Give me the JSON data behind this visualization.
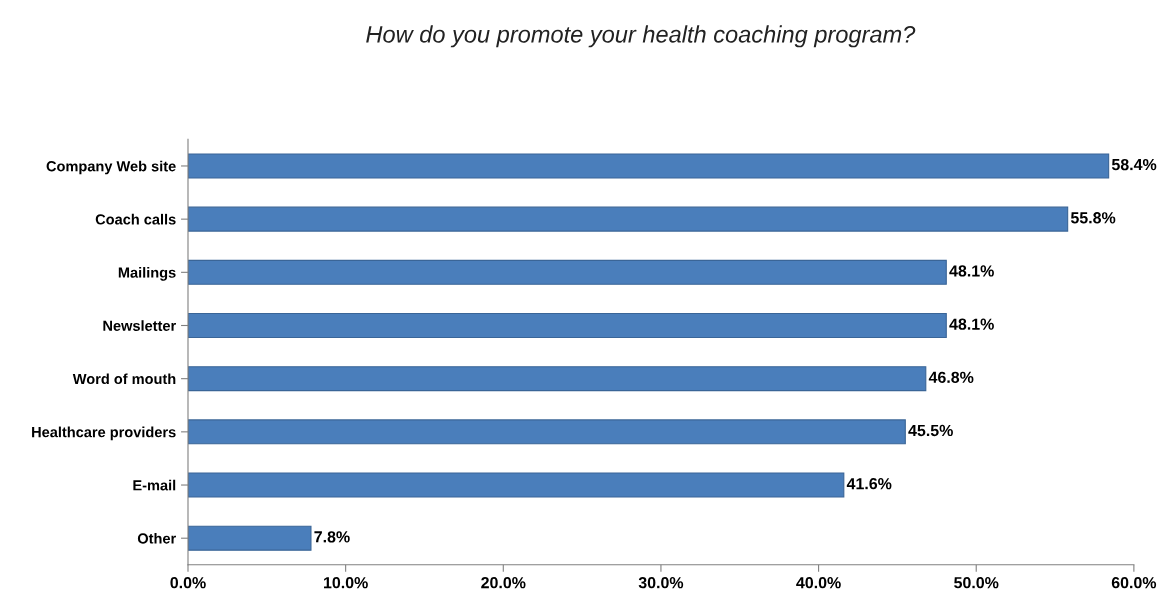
{
  "chart_data": {
    "type": "bar",
    "orientation": "horizontal",
    "title": "How do you promote your health coaching program?",
    "categories": [
      "Company Web site",
      "Coach calls",
      "Mailings",
      "Newsletter",
      "Word of mouth",
      "Healthcare providers",
      "E-mail",
      "Other"
    ],
    "values": [
      58.4,
      55.8,
      48.1,
      48.1,
      46.8,
      45.5,
      41.6,
      7.8
    ],
    "value_labels": [
      "58.4%",
      "55.8%",
      "48.1%",
      "48.1%",
      "46.8%",
      "45.5%",
      "41.6%",
      "7.8%"
    ],
    "color": "#4a7ebb",
    "xlim": [
      0,
      60
    ],
    "xticks": [
      {
        "value": 0,
        "label": "0.0%"
      },
      {
        "value": 10,
        "label": "10.0%"
      },
      {
        "value": 20,
        "label": "20.0%"
      },
      {
        "value": 30,
        "label": "30.0%"
      },
      {
        "value": 40,
        "label": "40.0%"
      },
      {
        "value": 50,
        "label": "50.0%"
      },
      {
        "value": 60,
        "label": "60.0%"
      }
    ],
    "grid": false,
    "legend": false
  }
}
